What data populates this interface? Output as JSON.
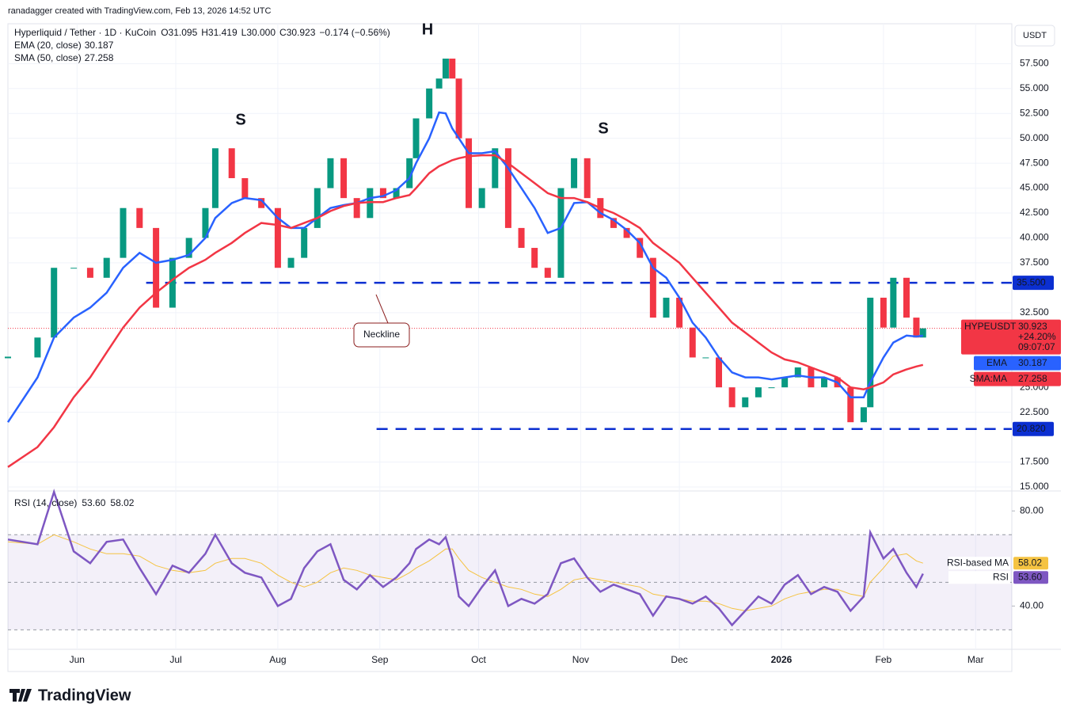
{
  "header": {
    "credit": "ranadagger created with TradingView.com, Feb 13, 2026 14:52 UTC"
  },
  "footer": {
    "brand": "TradingView"
  },
  "chart_data": [
    {
      "type": "candlestick",
      "title": "Hyperliquid / Tether · 1D · KuCoin",
      "ohlc": {
        "labels": [
          "O",
          "H",
          "L",
          "C"
        ],
        "values": [
          31.095,
          31.419,
          30.0,
          30.923
        ],
        "value_labels": [
          "31.095",
          "31.419",
          "30.000",
          "30.923"
        ]
      },
      "change": {
        "value": -0.174,
        "label": "−0.174 (−0.56%)"
      },
      "currency": "USDT",
      "x": [
        "2025-05-11",
        "2025-05-20",
        "2025-05-25",
        "2025-05-31",
        "2025-06-05",
        "2025-06-10",
        "2025-06-15",
        "2025-06-20",
        "2025-06-25",
        "2025-06-30",
        "2025-07-05",
        "2025-07-10",
        "2025-07-13",
        "2025-07-18",
        "2025-07-22",
        "2025-07-27",
        "2025-08-01",
        "2025-08-05",
        "2025-08-09",
        "2025-08-13",
        "2025-08-17",
        "2025-08-21",
        "2025-08-25",
        "2025-08-29",
        "2025-09-02",
        "2025-09-06",
        "2025-09-10",
        "2025-09-12",
        "2025-09-16",
        "2025-09-19",
        "2025-09-21",
        "2025-09-23",
        "2025-09-25",
        "2025-09-28",
        "2025-10-02",
        "2025-10-06",
        "2025-10-10",
        "2025-10-14",
        "2025-10-18",
        "2025-10-22",
        "2025-10-26",
        "2025-10-30",
        "2025-11-03",
        "2025-11-07",
        "2025-11-11",
        "2025-11-15",
        "2025-11-19",
        "2025-11-23",
        "2025-11-27",
        "2025-12-01",
        "2025-12-05",
        "2025-12-09",
        "2025-12-13",
        "2025-12-17",
        "2025-12-21",
        "2025-12-25",
        "2025-12-29",
        "2026-01-02",
        "2026-01-06",
        "2026-01-10",
        "2026-01-14",
        "2026-01-18",
        "2026-01-22",
        "2026-01-26",
        "2026-01-28",
        "2026-02-01",
        "2026-02-04",
        "2026-02-08",
        "2026-02-11",
        "2026-02-13"
      ],
      "xlim": [
        "2025-05-11",
        "2026-03-12"
      ],
      "xticks": [
        {
          "value": "2025-06-01",
          "label": "Jun"
        },
        {
          "value": "2025-07-01",
          "label": "Jul"
        },
        {
          "value": "2025-08-01",
          "label": "Aug"
        },
        {
          "value": "2025-09-01",
          "label": "Sep"
        },
        {
          "value": "2025-10-01",
          "label": "Oct"
        },
        {
          "value": "2025-11-01",
          "label": "Nov"
        },
        {
          "value": "2025-12-01",
          "label": "Dec"
        },
        {
          "value": "2026-01-01",
          "label": "2026"
        },
        {
          "value": "2026-02-01",
          "label": "Feb"
        },
        {
          "value": "2026-03-01",
          "label": "Mar"
        }
      ],
      "ylim": [
        14.6,
        61.5
      ],
      "yticks": [
        {
          "value": 15,
          "label": "15.000"
        },
        {
          "value": 17.5,
          "label": "17.500"
        },
        {
          "value": 22.5,
          "label": "22.500"
        },
        {
          "value": 25,
          "label": "25.000"
        },
        {
          "value": 32.5,
          "label": "32.500"
        },
        {
          "value": 37.5,
          "label": "37.500"
        },
        {
          "value": 40,
          "label": "40.000"
        },
        {
          "value": 42.5,
          "label": "42.500"
        },
        {
          "value": 45,
          "label": "45.000"
        },
        {
          "value": 47.5,
          "label": "47.500"
        },
        {
          "value": 50,
          "label": "50.000"
        },
        {
          "value": 52.5,
          "label": "52.500"
        },
        {
          "value": 55,
          "label": "55.000"
        },
        {
          "value": 57.5,
          "label": "57.500"
        }
      ],
      "grid": true,
      "series": [
        {
          "name": "HYPEUSDT",
          "type": "candlestick",
          "up_color": "#089981",
          "down_color": "#f23645",
          "values": [
            28,
            30,
            37,
            37,
            36,
            38,
            43,
            41,
            33,
            38,
            40,
            43,
            49,
            46,
            44,
            43,
            37,
            38,
            41,
            45,
            48,
            44,
            42,
            45,
            44,
            45,
            48,
            52,
            55,
            56,
            58,
            56,
            50,
            43,
            45,
            49,
            41,
            39,
            37,
            36,
            45,
            48,
            44,
            42,
            41,
            40,
            38,
            32,
            34,
            31,
            28,
            28,
            25,
            23,
            24,
            25,
            25,
            26,
            27,
            25,
            26,
            25,
            21.5,
            23,
            34,
            31,
            36,
            32,
            30,
            30.923
          ]
        },
        {
          "name": "EMA (20, close)",
          "tag": "EMA",
          "last_label": "30.187",
          "type": "line",
          "color": "#2962ff",
          "values": [
            21.5,
            26,
            30,
            32,
            33,
            34.5,
            37,
            38.5,
            37.5,
            37.8,
            38.3,
            40,
            42,
            43.5,
            44,
            43.8,
            42,
            41,
            41,
            42,
            43,
            43.3,
            43.5,
            44,
            44.2,
            44.8,
            46,
            47.5,
            50,
            52.6,
            52.5,
            51,
            50,
            48.5,
            48.5,
            48.7,
            47,
            45,
            43,
            40.5,
            41,
            43.5,
            43.6,
            42.5,
            41.8,
            40.8,
            39.5,
            37,
            36,
            34,
            31.5,
            30,
            28,
            26.5,
            26,
            26,
            25.8,
            26,
            26.2,
            26,
            26,
            25.5,
            24,
            24,
            25.5,
            28,
            29.5,
            30.2,
            30.1,
            30.187
          ]
        },
        {
          "name": "SMA (50, close)",
          "tag": "SMA:MA",
          "last_label": "27.258",
          "type": "line",
          "color": "#f23645",
          "values": [
            17,
            19,
            21,
            24,
            26,
            28.5,
            31,
            33,
            34.5,
            35.8,
            37,
            37.8,
            38.5,
            39.5,
            40.5,
            41.5,
            41.3,
            41,
            41.5,
            42,
            42.7,
            43.2,
            43.5,
            43.6,
            43.6,
            44,
            44.3,
            45,
            46.5,
            47.2,
            47.5,
            47.8,
            48,
            48.2,
            48.3,
            48.3,
            47.5,
            46.5,
            45.5,
            44.5,
            44,
            44,
            43.6,
            43,
            42.5,
            41.8,
            41,
            39.5,
            38.5,
            37.5,
            36,
            34.5,
            33,
            31.5,
            30.5,
            29.5,
            28.5,
            27.8,
            27.5,
            27,
            26.5,
            26,
            25,
            24.8,
            25,
            25.5,
            26.3,
            26.8,
            27.1,
            27.258
          ]
        }
      ],
      "last_price": {
        "name": "HYPEUSDT",
        "value": 30.923,
        "label": "30.923",
        "change": "+24.20%",
        "countdown": "09:07:07"
      },
      "levels": [
        {
          "value": 35.5,
          "label": "35.500",
          "from": "2025-06-22"
        },
        {
          "value": 20.82,
          "label": "20.820",
          "from": "2025-08-31"
        }
      ],
      "annotations": [
        "S",
        "H",
        "S",
        "Neckline"
      ]
    },
    {
      "type": "line",
      "title": "RSI (14, close)",
      "ylim": [
        21.8,
        88.4
      ],
      "yticks": [
        {
          "value": 40,
          "label": "40.00"
        },
        {
          "value": 80,
          "label": "80.00"
        }
      ],
      "levels": [
        70,
        50,
        30
      ],
      "series": [
        {
          "name": "RSI",
          "last_label": "53.60",
          "color": "#7e57c2",
          "values": [
            68,
            66,
            88,
            63,
            58,
            67,
            68,
            56,
            45,
            57,
            54,
            62,
            70,
            58,
            54,
            52,
            40,
            43,
            56,
            63,
            66,
            51,
            47,
            53,
            48,
            52,
            58,
            64,
            68,
            66,
            69,
            60,
            44,
            40,
            48,
            55,
            40,
            43,
            41,
            45,
            58,
            60,
            52,
            46,
            49,
            47,
            45,
            36,
            44,
            43,
            41,
            44,
            39,
            32,
            38,
            44,
            41,
            49,
            53,
            45,
            48,
            46,
            38,
            44,
            71,
            60,
            64,
            54,
            48,
            53.6
          ]
        },
        {
          "name": "RSI-based MA",
          "last_label": "58.02",
          "color": "#f5c342",
          "values": [
            67,
            66,
            70,
            67,
            64,
            62,
            62,
            61,
            57,
            55,
            54,
            55,
            58,
            60,
            60,
            58,
            53,
            50,
            48,
            50,
            54,
            56,
            55,
            53,
            52,
            51,
            54,
            56,
            59,
            62,
            64,
            64,
            60,
            55,
            52,
            50,
            48,
            47,
            45,
            44,
            47,
            51,
            52,
            51,
            50,
            49,
            48,
            45,
            44,
            43,
            42,
            42,
            41,
            39,
            38,
            39,
            40,
            43,
            45,
            46,
            47,
            47,
            45,
            44,
            50,
            56,
            61,
            62,
            59,
            58.02
          ]
        }
      ]
    }
  ]
}
